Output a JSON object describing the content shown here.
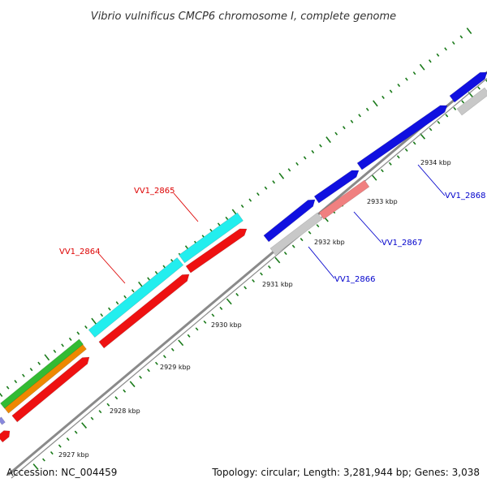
{
  "title": "Vibrio vulnificus CMCP6 chromosome I, complete genome",
  "footer": {
    "accession": "Accession: NC_004459",
    "summary": "Topology: circular; Length: 3,281,944 bp; Genes: 3,038"
  },
  "colors": {
    "backbone": "#8a8a8a",
    "tick": "#1a7a1a",
    "blue": "#1010e0",
    "red": "#ee1111",
    "cyan": "#22eeee",
    "grey": "#c8c8c8",
    "pink": "#f08080",
    "green": "#33bb33",
    "orange": "#ee8800",
    "label_red": "#dd0000",
    "label_blue": "#0000cc"
  },
  "scale_labels": [
    "2927 kbp",
    "2928 kbp",
    "2929 kbp",
    "2930 kbp",
    "2931 kbp",
    "2932 kbp",
    "2933 kbp",
    "2934 kbp"
  ],
  "gene_labels": [
    {
      "text": "VV1_2864",
      "color": "label_red"
    },
    {
      "text": "VV1_2865",
      "color": "label_red"
    },
    {
      "text": "VV1_2866",
      "color": "label_blue"
    },
    {
      "text": "VV1_2867",
      "color": "label_blue"
    },
    {
      "text": "VV1_2868",
      "color": "label_blue"
    }
  ]
}
